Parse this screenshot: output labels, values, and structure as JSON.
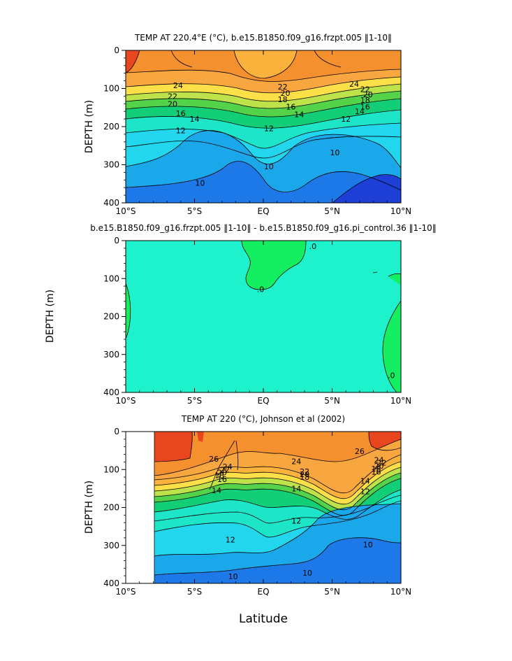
{
  "figure": {
    "xlabel": "Latitude"
  },
  "chart_data": [
    {
      "type": "contour",
      "title": "TEMP AT 220.4°E (°C), b.e15.B1850.f09_g16.frzpt.005 ‖1-10‖",
      "xlabel": "",
      "ylabel": "DEPTH  (m)",
      "xlim": [
        -10,
        10
      ],
      "ylim": [
        400,
        0
      ],
      "xticks": [
        -10,
        -5,
        0,
        5,
        10
      ],
      "xtick_labels": [
        "10°S",
        "5°S",
        "EQ",
        "5°N",
        "10°N"
      ],
      "yticks": [
        0,
        100,
        200,
        300,
        400
      ],
      "ytick_labels": [
        "0",
        "100",
        "200",
        "300",
        "400"
      ],
      "contour_interval": 1,
      "contour_labels": [
        {
          "text": "24",
          "lat": -6.2,
          "depth": 92
        },
        {
          "text": "22",
          "lat": -6.6,
          "depth": 120
        },
        {
          "text": "20",
          "lat": -6.6,
          "depth": 140
        },
        {
          "text": "16",
          "lat": -6.0,
          "depth": 165
        },
        {
          "text": "14",
          "lat": -5.0,
          "depth": 180
        },
        {
          "text": "12",
          "lat": -6.0,
          "depth": 210
        },
        {
          "text": "10",
          "lat": -4.6,
          "depth": 348
        },
        {
          "text": "22",
          "lat": 1.4,
          "depth": 95
        },
        {
          "text": "20",
          "lat": 1.6,
          "depth": 112
        },
        {
          "text": "18",
          "lat": 1.4,
          "depth": 128
        },
        {
          "text": "16",
          "lat": 2.0,
          "depth": 148
        },
        {
          "text": "14",
          "lat": 2.6,
          "depth": 168
        },
        {
          "text": "12",
          "lat": 0.4,
          "depth": 205
        },
        {
          "text": "10",
          "lat": 0.4,
          "depth": 305
        },
        {
          "text": "24",
          "lat": 6.6,
          "depth": 88
        },
        {
          "text": "22",
          "lat": 7.4,
          "depth": 102
        },
        {
          "text": "20",
          "lat": 7.6,
          "depth": 116
        },
        {
          "text": "18",
          "lat": 7.4,
          "depth": 130
        },
        {
          "text": "16",
          "lat": 7.4,
          "depth": 148
        },
        {
          "text": "14",
          "lat": 7.0,
          "depth": 160
        },
        {
          "text": "12",
          "lat": 6.0,
          "depth": 180
        },
        {
          "text": "10",
          "lat": 5.2,
          "depth": 268
        }
      ]
    },
    {
      "type": "contour",
      "title": "b.e15.B1850.f09_g16.frzpt.005 ‖1-10‖ - b.e15.B1850.f09_g16.pi_control.36 ‖1-10‖",
      "xlabel": "",
      "ylabel": "DEPTH  (m)",
      "xlim": [
        -10,
        10
      ],
      "ylim": [
        400,
        0
      ],
      "xticks": [
        -10,
        -5,
        0,
        5,
        10
      ],
      "xtick_labels": [
        "10°S",
        "5°S",
        "EQ",
        "5°N",
        "10°N"
      ],
      "yticks": [
        0,
        100,
        200,
        300,
        400
      ],
      "ytick_labels": [
        "0",
        "100",
        "200",
        "300",
        "400"
      ],
      "contour_labels": [
        {
          "text": ".0",
          "lat": -0.2,
          "depth": 128
        },
        {
          "text": ".0",
          "lat": 3.6,
          "depth": 15
        },
        {
          "text": ".0",
          "lat": 9.3,
          "depth": 355
        }
      ]
    },
    {
      "type": "contour",
      "title": "TEMP AT 220 (°C), Johnson et al (2002)",
      "xlabel": "Latitude",
      "ylabel": "DEPTH  (m)",
      "xlim": [
        -10,
        10
      ],
      "ylim": [
        400,
        0
      ],
      "data_lat_range": [
        -8,
        10
      ],
      "xticks": [
        -10,
        -5,
        0,
        5,
        10
      ],
      "xtick_labels": [
        "10°S",
        "5°S",
        "EQ",
        "5°N",
        "10°N"
      ],
      "yticks": [
        0,
        100,
        200,
        300,
        400
      ],
      "ytick_labels": [
        "0",
        "100",
        "200",
        "300",
        "400"
      ],
      "contour_interval": 1,
      "contour_labels": [
        {
          "text": "26",
          "lat": -3.6,
          "depth": 72
        },
        {
          "text": "24",
          "lat": -2.6,
          "depth": 92
        },
        {
          "text": "22",
          "lat": -2.8,
          "depth": 100
        },
        {
          "text": "20",
          "lat": -3.0,
          "depth": 108
        },
        {
          "text": "18",
          "lat": -3.2,
          "depth": 115
        },
        {
          "text": "16",
          "lat": -3.0,
          "depth": 125
        },
        {
          "text": "14",
          "lat": -3.4,
          "depth": 155
        },
        {
          "text": "24",
          "lat": 2.4,
          "depth": 78
        },
        {
          "text": "22",
          "lat": 3.0,
          "depth": 105
        },
        {
          "text": "20",
          "lat": 3.0,
          "depth": 112
        },
        {
          "text": "18",
          "lat": 3.0,
          "depth": 120
        },
        {
          "text": "14",
          "lat": 2.4,
          "depth": 150
        },
        {
          "text": "12",
          "lat": 2.4,
          "depth": 235
        },
        {
          "text": "26",
          "lat": 7.0,
          "depth": 52
        },
        {
          "text": "24",
          "lat": 8.4,
          "depth": 75
        },
        {
          "text": "22",
          "lat": 8.6,
          "depth": 82
        },
        {
          "text": "20",
          "lat": 8.4,
          "depth": 90
        },
        {
          "text": "18",
          "lat": 8.2,
          "depth": 98
        },
        {
          "text": "16",
          "lat": 8.2,
          "depth": 106
        },
        {
          "text": "14",
          "lat": 7.4,
          "depth": 130
        },
        {
          "text": "12",
          "lat": 7.4,
          "depth": 158
        },
        {
          "text": "12",
          "lat": -2.4,
          "depth": 285
        },
        {
          "text": "10",
          "lat": -2.2,
          "depth": 382
        },
        {
          "text": "10",
          "lat": 3.2,
          "depth": 372
        },
        {
          "text": "10",
          "lat": 7.6,
          "depth": 298
        }
      ]
    }
  ]
}
